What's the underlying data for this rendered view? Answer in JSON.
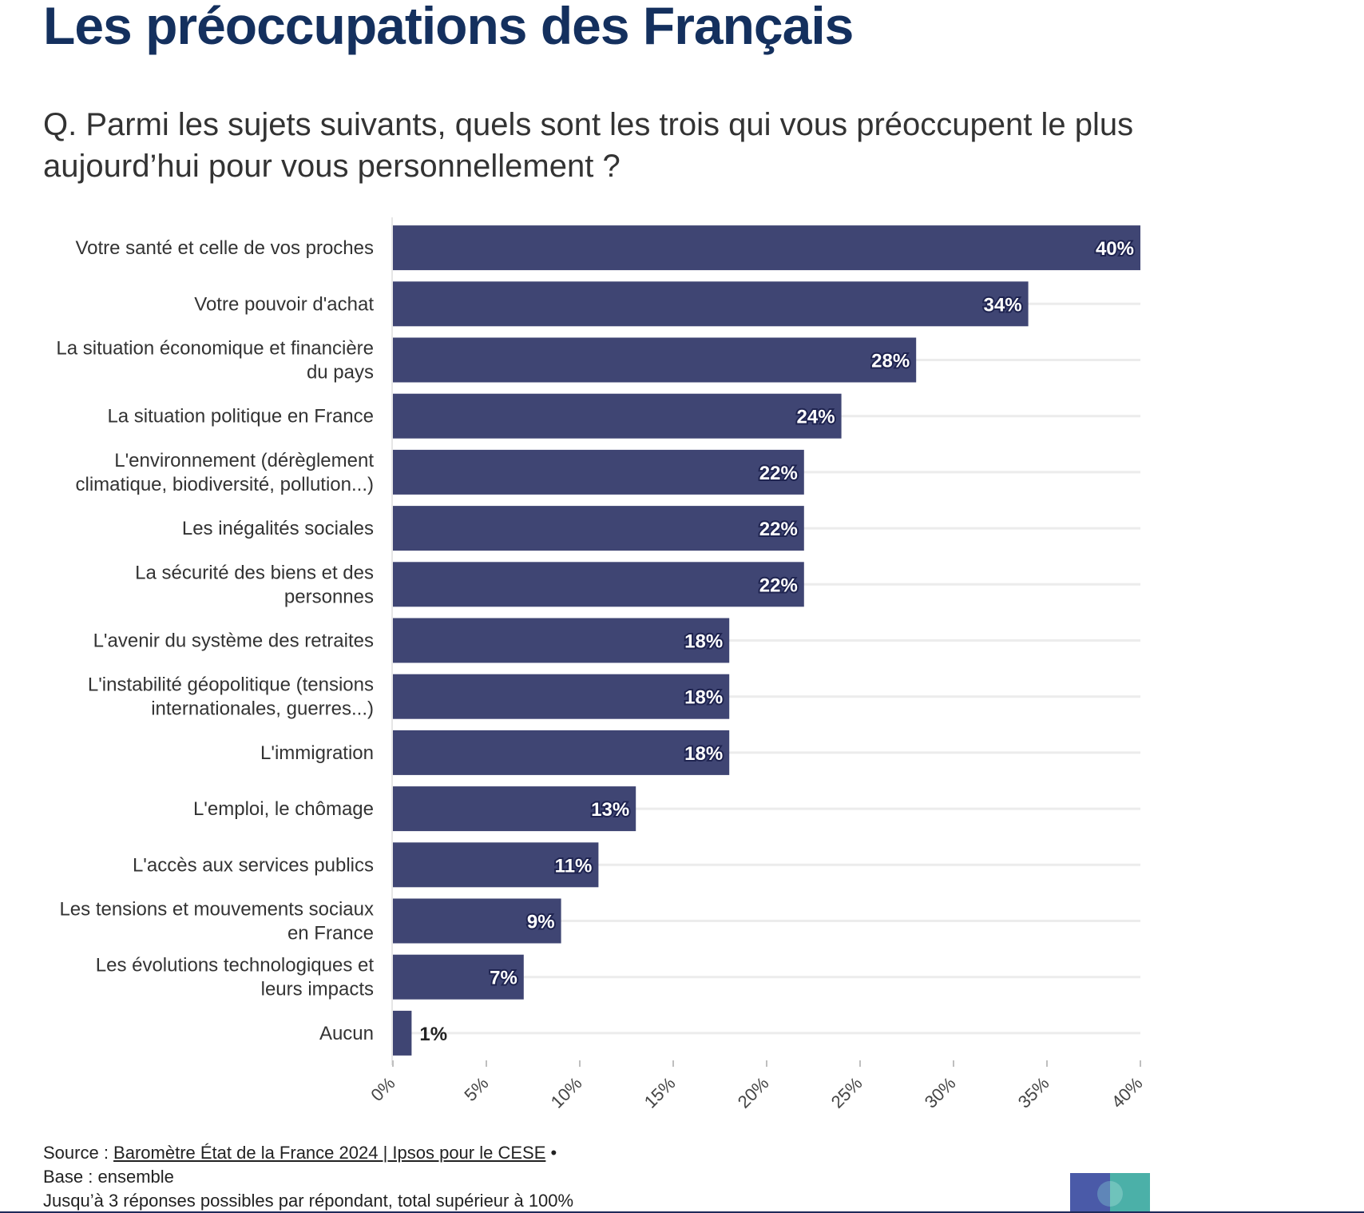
{
  "header": {
    "title": "Les préoccupations des Français",
    "subtitle": "Q. Parmi les sujets suivants, quels sont les trois qui vous préoccupent le plus aujourd’hui pour vous personnellement ? "
  },
  "chart_data": {
    "type": "bar",
    "orientation": "horizontal",
    "categories": [
      "Votre santé et celle de vos proches",
      "Votre pouvoir d'achat",
      "La situation économique et financière du pays",
      "La situation politique en France",
      "L'environnement (dérèglement climatique, biodiversité, pollution...)",
      "Les inégalités sociales",
      "La sécurité des biens et des personnes",
      "L'avenir du système des retraites",
      "L'instabilité géopolitique (tensions internationales, guerres...)",
      "L'immigration",
      "L'emploi, le chômage",
      "L'accès aux services publics",
      "Les tensions et mouvements sociaux en France",
      "Les évolutions technologiques et leurs impacts",
      "Aucun"
    ],
    "category_lines": [
      [
        "Votre santé et celle de vos proches"
      ],
      [
        "Votre pouvoir d'achat"
      ],
      [
        "La situation économique et financière",
        "du pays"
      ],
      [
        "La situation politique en France"
      ],
      [
        "L'environnement (dérèglement",
        "climatique, biodiversité, pollution...)"
      ],
      [
        "Les inégalités sociales"
      ],
      [
        "La sécurité des biens et des",
        "personnes"
      ],
      [
        "L'avenir du système des retraites"
      ],
      [
        "L'instabilité géopolitique (tensions",
        "internationales, guerres...)"
      ],
      [
        "L'immigration"
      ],
      [
        "L'emploi, le chômage"
      ],
      [
        "L'accès aux services publics"
      ],
      [
        "Les tensions et mouvements sociaux",
        "en France"
      ],
      [
        "Les évolutions technologiques et",
        "leurs impacts"
      ],
      [
        "Aucun"
      ]
    ],
    "values": [
      40,
      34,
      28,
      24,
      22,
      22,
      22,
      18,
      18,
      18,
      13,
      11,
      9,
      7,
      1
    ],
    "data_labels": [
      "40%",
      "34%",
      "28%",
      "24%",
      "22%",
      "22%",
      "22%",
      "18%",
      "18%",
      "18%",
      "13%",
      "11%",
      "9%",
      "7%",
      "1%"
    ],
    "xlim": [
      0,
      40
    ],
    "x_ticks": [
      "0%",
      "5%",
      "10%",
      "15%",
      "20%",
      "25%",
      "30%",
      "35%",
      "40%"
    ],
    "grid": true,
    "bar_color": "#3f4573",
    "title": "",
    "xlabel": "",
    "ylabel": ""
  },
  "footer": {
    "source_prefix": "Source : ",
    "source_link": "Baromètre État de la France 2024 | Ipsos pour le CESE",
    "source_suffix": " •",
    "base": "Base : ensemble",
    "note": "Jusqu’à 3 réponses possibles par répondant, total supérieur à 100%"
  },
  "colors": {
    "title": "#14305e",
    "bar": "#3f4573",
    "logo_blue": "#4a5aa8",
    "logo_teal": "#4bb0a8"
  },
  "logo": {
    "icon": "cese-logo-icon"
  }
}
